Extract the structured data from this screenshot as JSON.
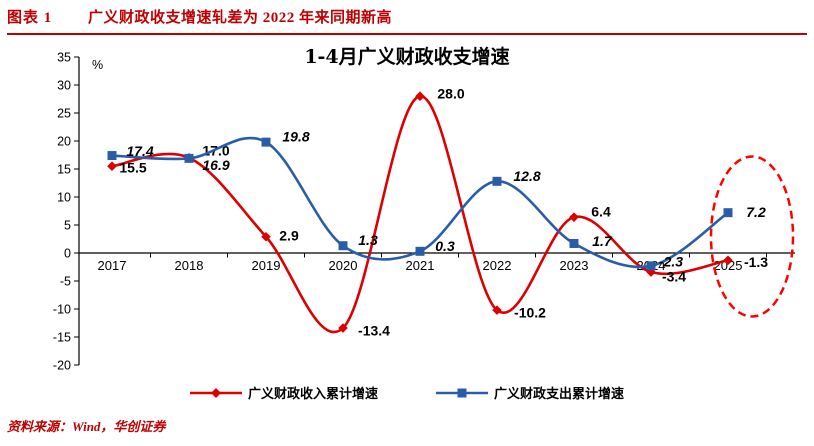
{
  "colors": {
    "accent_red": "#C00000",
    "highlight_red": "#FF0000",
    "axis_black": "#000000"
  },
  "header": {
    "figure_label": "图表 1",
    "figure_title": "广义财政收支增速轧差为 2022 年来同期新高"
  },
  "source_note": "资料来源：Wind，华创证券",
  "chart_data": {
    "type": "line",
    "title": "1-4月广义财政收支增速",
    "unit_label": "%",
    "categories": [
      "2017",
      "2018",
      "2019",
      "2020",
      "2021",
      "2022",
      "2023",
      "2024",
      "2025"
    ],
    "series": [
      {
        "name": "广义财政收入累计增速",
        "color": "#DC0000",
        "marker": "diamond",
        "label_italic": false,
        "values": [
          15.5,
          17.0,
          2.9,
          -13.4,
          28.0,
          -10.2,
          6.4,
          -3.4,
          -1.3
        ]
      },
      {
        "name": "广义财政支出累计增速",
        "color": "#2A5DA8",
        "marker": "square",
        "label_italic": true,
        "values": [
          17.4,
          16.9,
          19.8,
          1.3,
          0.3,
          12.8,
          1.7,
          -2.3,
          7.2
        ]
      }
    ],
    "ylim": [
      -20,
      35
    ],
    "ytick_step": 5,
    "grid": false,
    "line_smoothing": true,
    "legend_position": "bottom",
    "annotation": {
      "shape": "dashed-ellipse",
      "target": "2025",
      "color": "#FF0000"
    }
  }
}
